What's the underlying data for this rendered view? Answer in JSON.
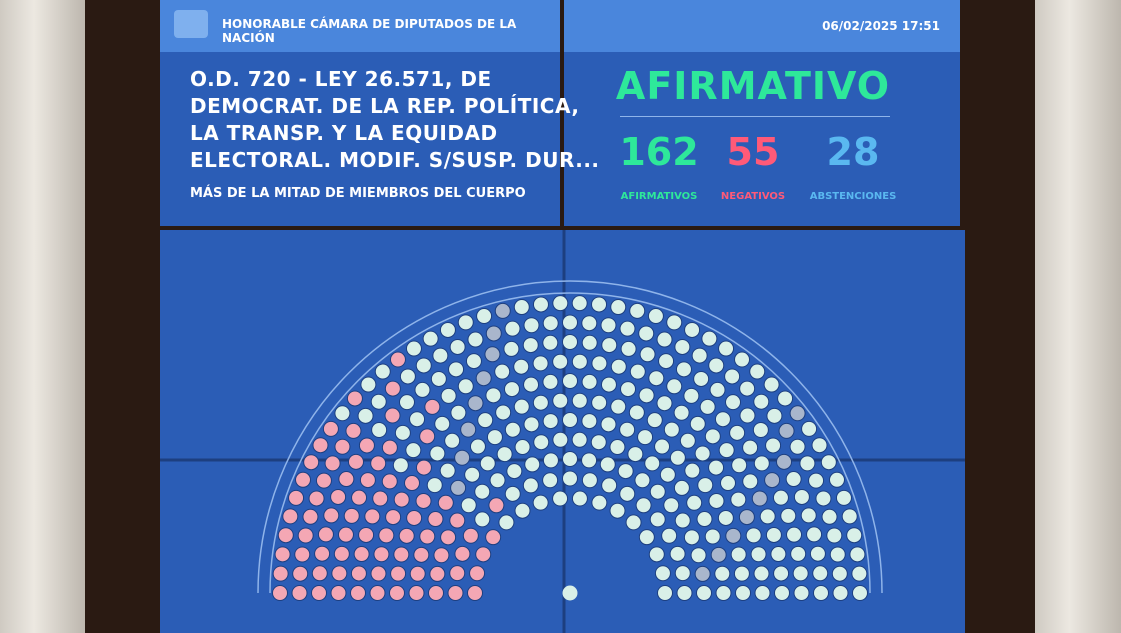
{
  "header": {
    "title": "HONORABLE CÁMARA DE DIPUTADOS DE LA NACIÓN",
    "datetime": "06/02/2025 17:51"
  },
  "motion": {
    "lines": [
      "O.D. 720 - LEY 26.571, DE",
      "DEMOCRAT. DE LA REP. POLÍTICA,",
      "LA TRANSP. Y LA EQUIDAD",
      "ELECTORAL. MODIF. S/SUSP. DUR..."
    ],
    "majority": "MÁS DE LA MITAD DE MIEMBROS DEL CUERPO"
  },
  "result": {
    "outcome": "AFIRMATIVO",
    "counts": [
      {
        "value": 162,
        "label": "AFIRMATIVOS"
      },
      {
        "value": 55,
        "label": "NEGATIVOS"
      },
      {
        "value": 28,
        "label": "ABSTENCIONES"
      }
    ]
  }
}
